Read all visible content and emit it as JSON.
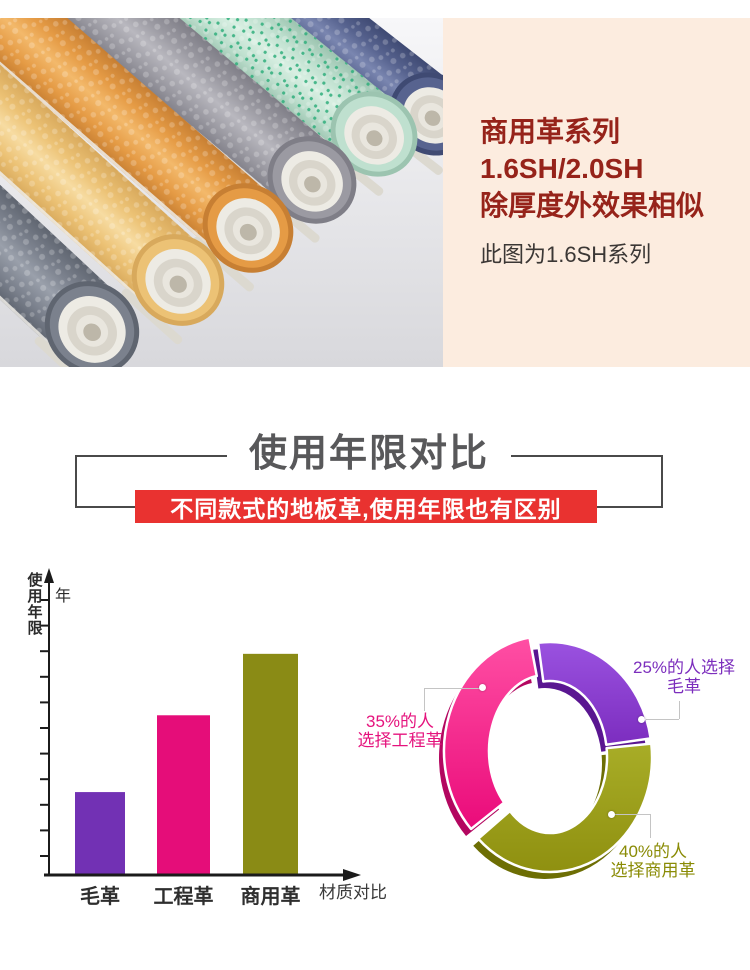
{
  "page": {
    "background": "#ffffff"
  },
  "hero": {
    "panel": {
      "background": "#fcecdf",
      "line1": "商用革系列",
      "line2": "1.6SH/2.0SH",
      "line3": "除厚度外效果相似",
      "title_color": "#96231a",
      "note": "此图为1.6SH系列",
      "note_color": "#3b3735"
    },
    "photo": {
      "bg_top": "#f7f7f9",
      "bg_bottom": "#d8d8dc",
      "paper_color": "#edebe4",
      "rolls": [
        {
          "name": "blue",
          "color": "#57638f",
          "hi": "#7a86b0",
          "dark": "#3f4a73"
        },
        {
          "name": "mint",
          "color": "#bfe0cf",
          "hi": "#d8efe2",
          "dark": "#9cc4b0",
          "speckle": "#2fae7c"
        },
        {
          "name": "gray",
          "color": "#9b9aa2",
          "hi": "#b9b8bf",
          "dark": "#7f7e87"
        },
        {
          "name": "orange",
          "color": "#e59b45",
          "hi": "#f3b96b",
          "dark": "#c77f33"
        },
        {
          "name": "yellow",
          "color": "#ecc275",
          "hi": "#f7dca2",
          "dark": "#d8a95c"
        },
        {
          "name": "slate",
          "color": "#7b818d",
          "hi": "#9aa0ab",
          "dark": "#5f6570"
        }
      ]
    }
  },
  "comparison": {
    "title": "使用年限对比",
    "title_color": "#58585a",
    "border_color": "#4a4a4a",
    "banner_text": "不同款式的地板革,使用年限也有区别",
    "banner_bg": "#e93230",
    "banner_text_color": "#ffffff"
  },
  "chart_data": [
    {
      "type": "bar",
      "categories": [
        "毛革",
        "工程革",
        "商用革"
      ],
      "values": [
        3.2,
        6.2,
        8.6
      ],
      "unit": "年",
      "ylabel": "使用年限",
      "xlabel": "材质对比",
      "bar_colors": [
        "#7231b4",
        "#e50d79",
        "#8a8b15"
      ],
      "axis_color": "#1b1b1b",
      "label_color": "#2e2e2e",
      "tick_count": 11,
      "ylim": [
        0,
        11
      ],
      "grid": false,
      "note": "y-axis ticks unlabeled; values estimated in tick units (years)"
    },
    {
      "type": "pie",
      "donut": true,
      "start_angle_deg": -98,
      "legend_position": "callouts",
      "slices": [
        {
          "value": 25,
          "label": "25%的人选择毛革",
          "label_lines": [
            "25%的人选择",
            "毛革"
          ],
          "color": "#7c2dbf",
          "light": "#9a52e0",
          "dark": "#5a1691",
          "label_color": "#7c2ebd"
        },
        {
          "value": 40,
          "label": "40%的人选择商用革",
          "label_lines": [
            "40%的人",
            "选择商用革"
          ],
          "color": "#8f9010",
          "light": "#a8ad27",
          "dark": "#6d6e04",
          "label_color": "#8a8b05"
        },
        {
          "value": 35,
          "label": "35%的人选择工程革",
          "label_lines": [
            "35%的人",
            "选择工程革"
          ],
          "color": "#ea0b7a",
          "light": "#ff4fa4",
          "dark": "#b30760",
          "label_color": "#e5137d"
        }
      ]
    }
  ]
}
